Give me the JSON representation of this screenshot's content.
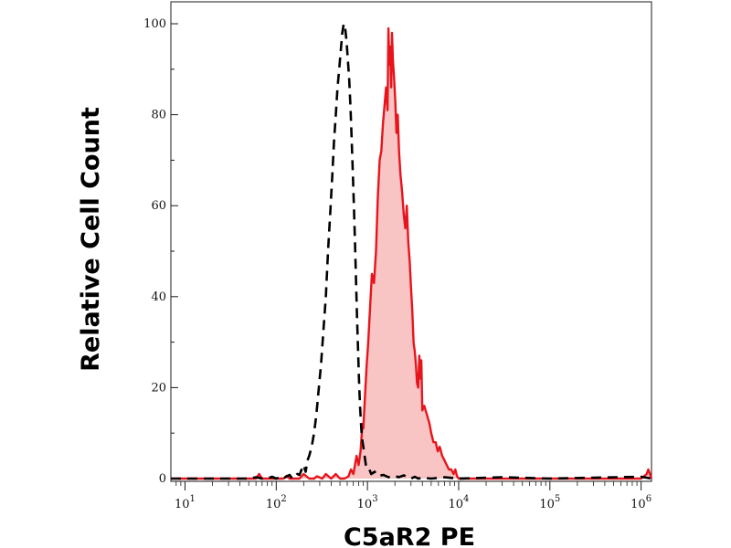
{
  "chart_data": {
    "type": "area",
    "xlabel": "C5aR2 PE",
    "ylabel": "Relative Cell Count",
    "x_scale": "log",
    "xlim": [
      7,
      1300000
    ],
    "ylim": [
      0,
      100
    ],
    "x_ticks": [
      {
        "base": "10",
        "exp": "1",
        "value": 10
      },
      {
        "base": "10",
        "exp": "2",
        "value": 100
      },
      {
        "base": "10",
        "exp": "3",
        "value": 1000
      },
      {
        "base": "10",
        "exp": "4",
        "value": 10000
      },
      {
        "base": "10",
        "exp": "5",
        "value": 100000
      },
      {
        "base": "10",
        "exp": "6",
        "value": 1000000
      }
    ],
    "y_ticks": [
      "0",
      "20",
      "40",
      "60",
      "80",
      "100"
    ],
    "grid": false,
    "series": [
      {
        "style": "filled",
        "line_color": "#e8141c",
        "fill_color": "#f9c4c4",
        "x": [
          7,
          60,
          65,
          70,
          75,
          120,
          130,
          140,
          160,
          180,
          200,
          230,
          260,
          280,
          320,
          350,
          400,
          450,
          500,
          560,
          620,
          660,
          700,
          730,
          760,
          800,
          840,
          880,
          900,
          940,
          980,
          1020,
          1070,
          1120,
          1180,
          1240,
          1300,
          1360,
          1420,
          1480,
          1540,
          1600,
          1660,
          1700,
          1740,
          1780,
          1820,
          1860,
          1900,
          1960,
          2020,
          2080,
          2150,
          2220,
          2300,
          2400,
          2500,
          2600,
          2700,
          2800,
          2900,
          3000,
          3100,
          3200,
          3300,
          3400,
          3500,
          3600,
          3700,
          3800,
          3900,
          4000,
          4200,
          4500,
          4800,
          5000,
          5300,
          5600,
          5900,
          6200,
          6600,
          7000,
          7400,
          7800,
          8300,
          8800,
          9200,
          9600,
          10000,
          10500,
          11500,
          13000,
          20000,
          40000,
          100000,
          300000,
          700000,
          1000000,
          1150000,
          1200000,
          1250000,
          1300000
        ],
        "y": [
          0,
          0,
          1,
          0,
          0,
          0,
          0.6,
          0,
          0,
          0,
          1,
          0,
          0,
          0.5,
          0,
          1,
          0,
          1,
          0,
          0,
          0.5,
          2,
          1,
          3,
          5,
          3,
          6,
          12,
          11,
          18,
          25,
          30,
          38,
          45,
          43,
          50,
          62,
          70,
          72,
          78,
          82,
          86,
          81,
          99,
          91,
          95,
          86,
          98,
          92,
          88,
          83,
          76,
          80,
          72,
          67,
          63,
          58,
          55,
          60,
          52,
          48,
          42,
          37,
          30,
          28,
          25,
          21,
          20,
          27,
          22,
          26,
          15,
          16,
          14,
          12,
          10,
          8,
          8,
          6,
          7,
          5,
          4,
          3,
          2,
          2,
          1,
          2,
          0.5,
          0,
          0,
          0,
          0,
          0,
          0,
          0,
          0,
          0,
          0,
          1,
          2,
          1,
          0
        ]
      },
      {
        "style": "dashed",
        "line_color": "#000000",
        "x": [
          7,
          50,
          60,
          70,
          80,
          90,
          100,
          110,
          120,
          130,
          140,
          150,
          160,
          170,
          180,
          190,
          200,
          210,
          220,
          230,
          245,
          260,
          275,
          290,
          310,
          330,
          350,
          370,
          390,
          410,
          430,
          450,
          470,
          490,
          510,
          530,
          550,
          570,
          590,
          610,
          630,
          650,
          670,
          690,
          710,
          730,
          750,
          770,
          790,
          810,
          830,
          850,
          870,
          900,
          930,
          960,
          1000,
          1050,
          1100,
          1200,
          1300,
          1500,
          1700,
          2000,
          2200,
          2500,
          3000,
          3300,
          3600,
          4000,
          5000,
          7000,
          10000,
          30000,
          100000,
          300000,
          1000000,
          1300000
        ],
        "y": [
          0,
          0,
          0.3,
          0,
          0,
          0.4,
          0,
          0.3,
          0,
          0.5,
          0.8,
          0,
          0.5,
          1,
          0.8,
          2,
          3,
          1.5,
          4,
          5,
          7,
          10,
          14,
          19,
          25,
          33,
          40,
          50,
          58,
          66,
          74,
          80,
          86,
          90,
          94,
          98,
          100,
          99,
          96,
          92,
          88,
          82,
          75,
          68,
          60,
          52,
          43,
          35,
          28,
          21,
          16,
          12,
          9,
          7,
          5,
          3,
          2,
          2,
          1,
          1.5,
          0.6,
          0.8,
          0.3,
          0.6,
          0.3,
          0.7,
          0,
          0.4,
          0,
          0.2,
          0,
          0.3,
          0,
          0.3,
          0,
          0.2,
          0.4,
          0
        ]
      }
    ]
  }
}
